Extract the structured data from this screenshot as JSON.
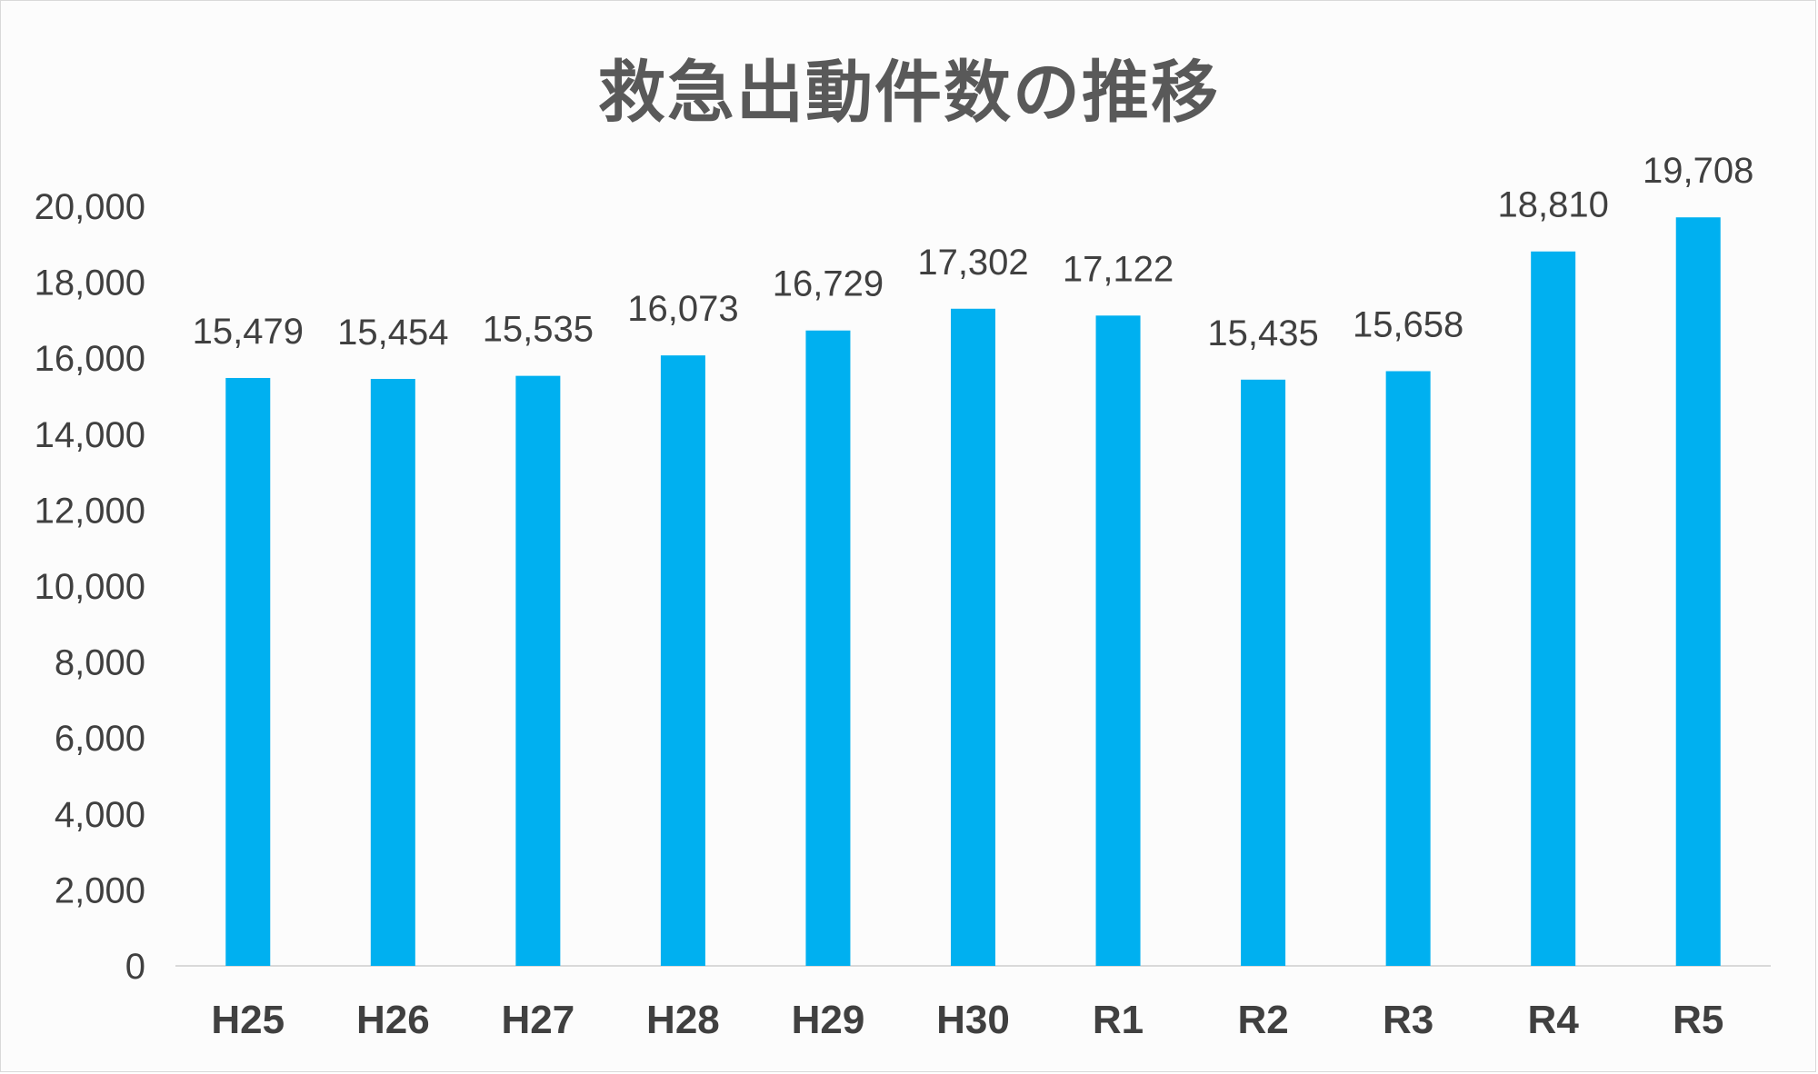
{
  "chart_data": {
    "type": "bar",
    "title": "救急出動件数の推移",
    "categories": [
      "H25",
      "H26",
      "H27",
      "H28",
      "H29",
      "H30",
      "R1",
      "R2",
      "R3",
      "R4",
      "R5"
    ],
    "values": [
      15479,
      15454,
      15535,
      16073,
      16729,
      17302,
      17122,
      15435,
      15658,
      18810,
      19708
    ],
    "data_labels": [
      "15,479",
      "15,454",
      "15,535",
      "16,073",
      "16,729",
      "17,302",
      "17,122",
      "15,435",
      "15,658",
      "18,810",
      "19,708"
    ],
    "yticks": [
      "0",
      "2,000",
      "4,000",
      "6,000",
      "8,000",
      "10,000",
      "12,000",
      "14,000",
      "16,000",
      "18,000",
      "20,000"
    ],
    "ylim": [
      0,
      20000
    ],
    "grid": false,
    "legend": "none",
    "bar_color": "#00b0f0"
  }
}
